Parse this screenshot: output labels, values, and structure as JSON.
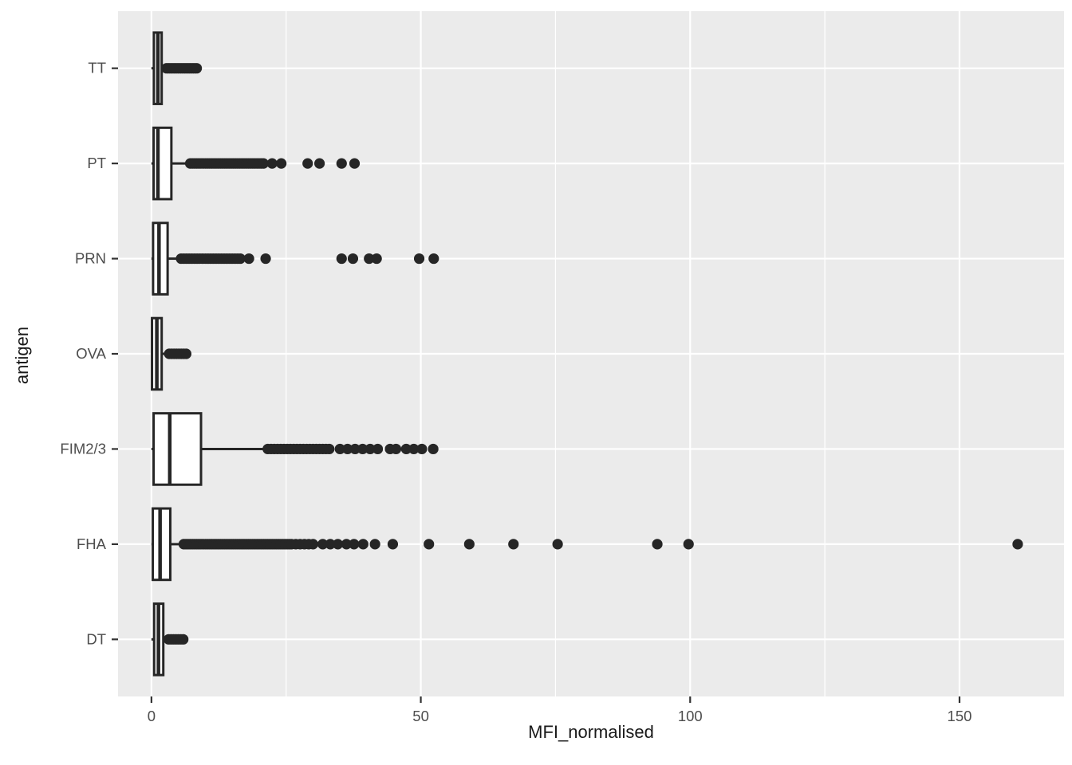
{
  "chart_data": {
    "type": "boxplot",
    "orientation": "horizontal",
    "title": "",
    "xlabel": "MFI_normalised",
    "ylabel": "antigen",
    "xlim": [
      -6.2,
      169.4
    ],
    "x_ticks": [
      0,
      50,
      100,
      150
    ],
    "x_minor_ticks": [
      25,
      75,
      125
    ],
    "grid": "major-and-minor-white-on-grey",
    "legend": "none",
    "categories_top_to_bottom": [
      "TT",
      "PT",
      "PRN",
      "OVA",
      "FIM2/3",
      "FHA",
      "DT"
    ],
    "series": [
      {
        "antigen": "TT",
        "whisker_low": 0,
        "q1": 0.45,
        "median": 1.2,
        "q3": 1.9,
        "whisker_high": 2.5,
        "outliers": [
          {
            "run": [
              2.8,
              8.4,
              0.4
            ]
          }
        ]
      },
      {
        "antigen": "PT",
        "whisker_low": 0,
        "q1": 0.4,
        "median": 1.2,
        "q3": 3.7,
        "whisker_high": 7.0,
        "outliers": [
          {
            "run": [
              7.2,
              21.0,
              0.4
            ]
          },
          22.4,
          24.1,
          29.0,
          31.2,
          35.3,
          37.7
        ]
      },
      {
        "antigen": "PRN",
        "whisker_low": 0,
        "q1": 0.3,
        "median": 1.4,
        "q3": 3.0,
        "whisker_high": 5.2,
        "outliers": [
          {
            "run": [
              5.5,
              16.8,
              0.5
            ]
          },
          18.1,
          21.2,
          35.3,
          37.4,
          40.4,
          41.8,
          49.7,
          52.4
        ]
      },
      {
        "antigen": "OVA",
        "whisker_low": 0,
        "q1": 0.1,
        "median": 1.0,
        "q3": 1.9,
        "whisker_high": 3.0,
        "outliers": [
          {
            "run": [
              3.3,
              6.6,
              0.45
            ]
          }
        ]
      },
      {
        "antigen": "FIM2/3",
        "whisker_low": 0,
        "q1": 0.4,
        "median": 3.4,
        "q3": 9.2,
        "whisker_high": 21.0,
        "outliers": [
          {
            "run": [
              21.6,
              33.0,
              0.6
            ]
          },
          35.0,
          36.4,
          37.8,
          39.2,
          40.6,
          42.0,
          44.3,
          45.4,
          47.3,
          48.7,
          50.2,
          52.3
        ]
      },
      {
        "antigen": "FHA",
        "whisker_low": 0,
        "q1": 0.25,
        "median": 1.6,
        "q3": 3.5,
        "whisker_high": 5.8,
        "outliers": [
          {
            "run": [
              6.0,
              26.0,
              0.4
            ]
          },
          26.8,
          27.6,
          28.4,
          29.2,
          30.0,
          31.8,
          33.2,
          34.6,
          36.2,
          37.6,
          39.3,
          41.5,
          44.8,
          51.5,
          59.0,
          67.2,
          75.4,
          93.9,
          99.7,
          160.8
        ]
      },
      {
        "antigen": "DT",
        "whisker_low": 0,
        "q1": 0.5,
        "median": 1.3,
        "q3": 2.2,
        "whisker_high": 2.9,
        "outliers": [
          {
            "run": [
              3.2,
              6.3,
              0.45
            ]
          }
        ]
      }
    ],
    "colors": {
      "outer_bg": "#FFFFFF",
      "panel_bg": "#EBEBEB",
      "grid": "#FFFFFF",
      "ink": "#262626",
      "box_fill": "#FFFFFF",
      "axis_text": "#4D4D4D",
      "tick_mark": "#333333",
      "axis_title": "#1A1A1A"
    }
  }
}
